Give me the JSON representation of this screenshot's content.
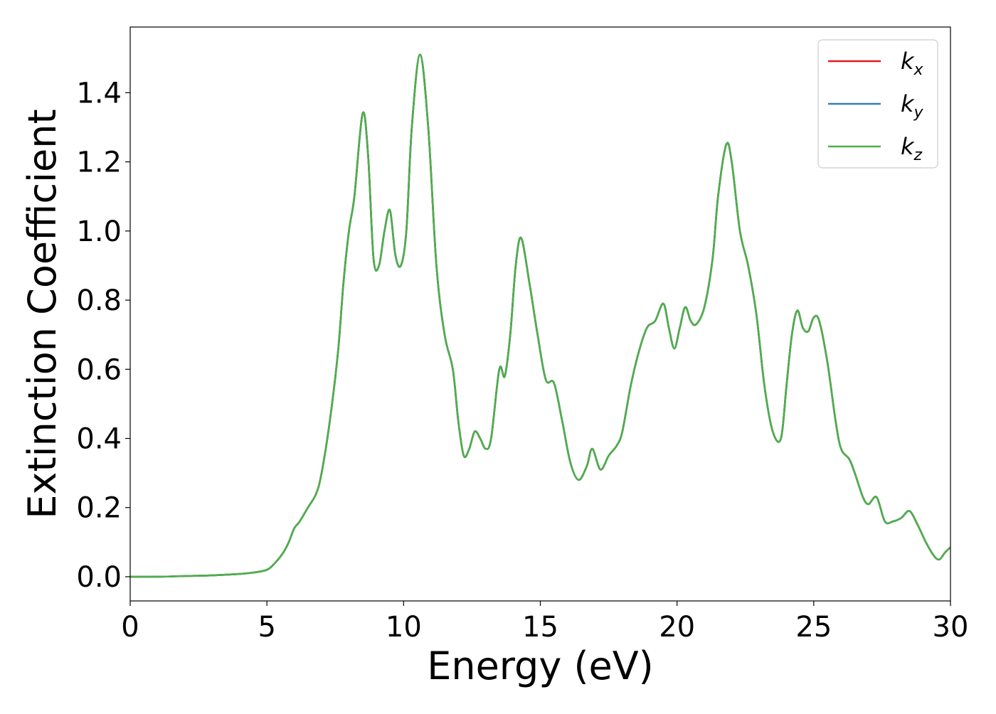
{
  "chart_data": {
    "type": "line",
    "title": "",
    "xlabel": "Energy (eV)",
    "ylabel": "Extinction Coefficient",
    "xlim": [
      0,
      30
    ],
    "ylim": [
      -0.07,
      1.59
    ],
    "x_ticks": [
      "0",
      "5",
      "10",
      "15",
      "20",
      "25",
      "30"
    ],
    "y_ticks": [
      "0.0",
      "0.2",
      "0.4",
      "0.6",
      "0.8",
      "1.0",
      "1.2",
      "1.4"
    ],
    "grid": false,
    "legend_position": "top-right",
    "x": [
      0,
      1,
      2,
      3,
      4,
      4.5,
      5,
      5.3,
      5.6,
      5.8,
      6.0,
      6.2,
      6.5,
      6.8,
      7.0,
      7.3,
      7.6,
      7.8,
      8.0,
      8.2,
      8.5,
      8.7,
      8.9,
      9.1,
      9.3,
      9.5,
      9.7,
      9.9,
      10.1,
      10.3,
      10.6,
      10.9,
      11.2,
      11.5,
      11.8,
      12.0,
      12.2,
      12.4,
      12.6,
      12.8,
      13.0,
      13.2,
      13.5,
      13.7,
      13.9,
      14.1,
      14.3,
      14.6,
      14.9,
      15.2,
      15.5,
      15.8,
      16.1,
      16.4,
      16.7,
      16.9,
      17.2,
      17.5,
      17.8,
      18.0,
      18.3,
      18.6,
      18.9,
      19.2,
      19.5,
      19.7,
      19.9,
      20.1,
      20.3,
      20.5,
      20.7,
      21.0,
      21.3,
      21.5,
      21.8,
      22.0,
      22.3,
      22.6,
      22.9,
      23.2,
      23.5,
      23.8,
      24.0,
      24.2,
      24.4,
      24.6,
      24.8,
      25.0,
      25.2,
      25.5,
      25.8,
      26.0,
      26.3,
      26.5,
      26.8,
      27.0,
      27.3,
      27.6,
      27.9,
      28.2,
      28.5,
      28.8,
      29.1,
      29.4,
      29.6,
      29.8,
      30.0
    ],
    "series": [
      {
        "name": "k_x",
        "color": "#e41a1c",
        "values": [
          0.0,
          0.0,
          0.002,
          0.004,
          0.008,
          0.012,
          0.02,
          0.04,
          0.07,
          0.1,
          0.14,
          0.16,
          0.2,
          0.24,
          0.3,
          0.45,
          0.65,
          0.85,
          1.0,
          1.1,
          1.34,
          1.22,
          0.92,
          0.9,
          1.0,
          1.06,
          0.93,
          0.9,
          1.0,
          1.3,
          1.51,
          1.3,
          0.9,
          0.7,
          0.6,
          0.45,
          0.35,
          0.37,
          0.42,
          0.4,
          0.37,
          0.4,
          0.6,
          0.58,
          0.7,
          0.9,
          0.98,
          0.85,
          0.7,
          0.57,
          0.56,
          0.45,
          0.33,
          0.28,
          0.32,
          0.37,
          0.31,
          0.35,
          0.38,
          0.42,
          0.55,
          0.65,
          0.72,
          0.74,
          0.79,
          0.72,
          0.66,
          0.72,
          0.78,
          0.74,
          0.73,
          0.78,
          0.92,
          1.1,
          1.25,
          1.2,
          1.0,
          0.9,
          0.76,
          0.55,
          0.42,
          0.4,
          0.55,
          0.7,
          0.77,
          0.72,
          0.71,
          0.75,
          0.74,
          0.62,
          0.45,
          0.37,
          0.34,
          0.3,
          0.23,
          0.21,
          0.23,
          0.16,
          0.16,
          0.17,
          0.19,
          0.15,
          0.1,
          0.06,
          0.05,
          0.07,
          0.085
        ]
      },
      {
        "name": "k_y",
        "color": "#377eb8",
        "values": [
          0.0,
          0.0,
          0.002,
          0.004,
          0.008,
          0.012,
          0.02,
          0.04,
          0.07,
          0.1,
          0.14,
          0.16,
          0.2,
          0.24,
          0.3,
          0.45,
          0.65,
          0.85,
          1.0,
          1.1,
          1.34,
          1.22,
          0.92,
          0.9,
          1.0,
          1.06,
          0.93,
          0.9,
          1.0,
          1.3,
          1.51,
          1.3,
          0.9,
          0.7,
          0.6,
          0.45,
          0.35,
          0.37,
          0.42,
          0.4,
          0.37,
          0.4,
          0.6,
          0.58,
          0.7,
          0.9,
          0.98,
          0.85,
          0.7,
          0.57,
          0.56,
          0.45,
          0.33,
          0.28,
          0.32,
          0.37,
          0.31,
          0.35,
          0.38,
          0.42,
          0.55,
          0.65,
          0.72,
          0.74,
          0.79,
          0.72,
          0.66,
          0.72,
          0.78,
          0.74,
          0.73,
          0.78,
          0.92,
          1.1,
          1.25,
          1.2,
          1.0,
          0.9,
          0.76,
          0.55,
          0.42,
          0.4,
          0.55,
          0.7,
          0.77,
          0.72,
          0.71,
          0.75,
          0.74,
          0.62,
          0.45,
          0.37,
          0.34,
          0.3,
          0.23,
          0.21,
          0.23,
          0.16,
          0.16,
          0.17,
          0.19,
          0.15,
          0.1,
          0.06,
          0.05,
          0.07,
          0.085
        ]
      },
      {
        "name": "k_z",
        "color": "#4daf4a",
        "values": [
          0.0,
          0.0,
          0.002,
          0.004,
          0.008,
          0.012,
          0.02,
          0.04,
          0.07,
          0.1,
          0.14,
          0.16,
          0.2,
          0.24,
          0.3,
          0.45,
          0.65,
          0.85,
          1.0,
          1.1,
          1.34,
          1.22,
          0.92,
          0.9,
          1.0,
          1.06,
          0.93,
          0.9,
          1.0,
          1.3,
          1.51,
          1.3,
          0.9,
          0.7,
          0.6,
          0.45,
          0.35,
          0.37,
          0.42,
          0.4,
          0.37,
          0.4,
          0.6,
          0.58,
          0.7,
          0.9,
          0.98,
          0.85,
          0.7,
          0.57,
          0.56,
          0.45,
          0.33,
          0.28,
          0.32,
          0.37,
          0.31,
          0.35,
          0.38,
          0.42,
          0.55,
          0.65,
          0.72,
          0.74,
          0.79,
          0.72,
          0.66,
          0.72,
          0.78,
          0.74,
          0.73,
          0.78,
          0.92,
          1.1,
          1.25,
          1.2,
          1.0,
          0.9,
          0.76,
          0.55,
          0.42,
          0.4,
          0.55,
          0.7,
          0.77,
          0.72,
          0.71,
          0.75,
          0.74,
          0.62,
          0.45,
          0.37,
          0.34,
          0.3,
          0.23,
          0.21,
          0.23,
          0.16,
          0.16,
          0.17,
          0.19,
          0.15,
          0.1,
          0.06,
          0.05,
          0.07,
          0.085
        ]
      }
    ],
    "legend": [
      {
        "main": "k",
        "sub": "x",
        "color": "#e41a1c"
      },
      {
        "main": "k",
        "sub": "y",
        "color": "#377eb8"
      },
      {
        "main": "k",
        "sub": "z",
        "color": "#4daf4a"
      }
    ]
  }
}
